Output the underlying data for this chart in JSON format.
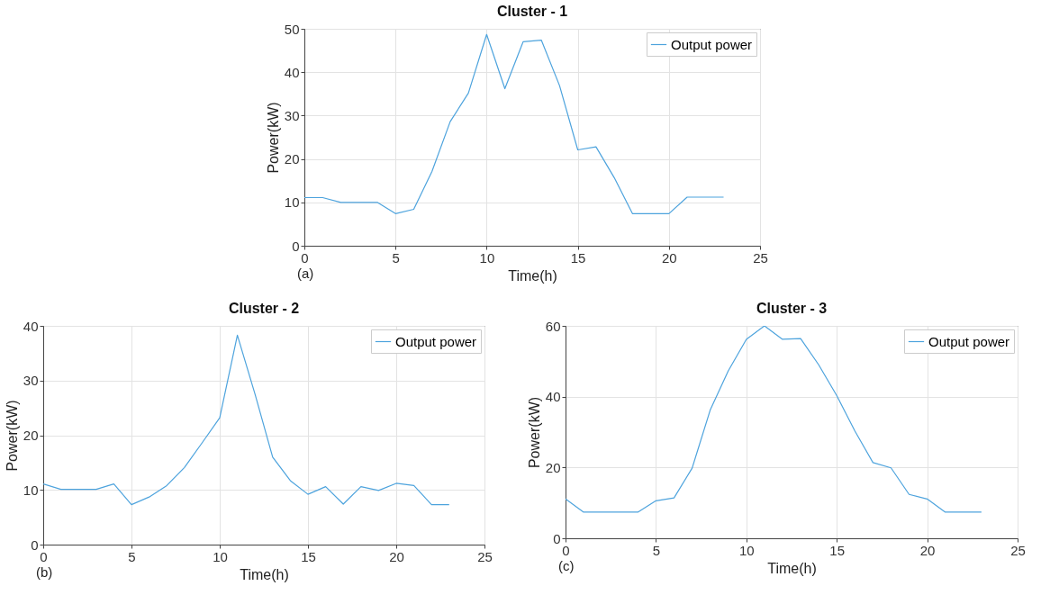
{
  "chart_data": [
    {
      "type": "line",
      "title": "Cluster - 1",
      "xlabel": "Time(h)",
      "ylabel": "Power(kW)",
      "x": [
        0,
        1,
        2,
        3,
        4,
        5,
        6,
        7,
        8,
        9,
        10,
        11,
        12,
        13,
        14,
        15,
        16,
        17,
        18,
        19,
        20,
        21,
        22,
        23
      ],
      "series": [
        {
          "name": "Output power",
          "color": "#4da3dd",
          "values": [
            11.1,
            11.1,
            10,
            10,
            10,
            7.4,
            8.4,
            17.1,
            28.6,
            35.2,
            48.7,
            36.2,
            47,
            47.4,
            36.9,
            22.1,
            22.8,
            15.7,
            7.4,
            7.4,
            7.4,
            11.2,
            11.2,
            11.2
          ]
        }
      ],
      "xlim": [
        0,
        25
      ],
      "xticks": [
        0,
        5,
        10,
        15,
        20,
        25
      ],
      "ylim": [
        0,
        50
      ],
      "yticks": [
        0,
        10,
        20,
        30,
        40,
        50
      ],
      "grid": true,
      "legend": "top right",
      "marker": "none",
      "line_style": "solid",
      "annotations": [
        "(a)"
      ]
    },
    {
      "type": "line",
      "title": "Cluster - 2",
      "xlabel": "Time(h)",
      "ylabel": "Power(kW)",
      "x": [
        0,
        1,
        2,
        3,
        4,
        5,
        6,
        7,
        8,
        9,
        10,
        11,
        12,
        13,
        14,
        15,
        16,
        17,
        18,
        19,
        20,
        21,
        22,
        23
      ],
      "series": [
        {
          "name": "Output power",
          "color": "#4da3dd",
          "values": [
            11.1,
            10.1,
            10.1,
            10.1,
            11.1,
            7.3,
            8.7,
            10.8,
            14.1,
            18.6,
            23.2,
            38.3,
            27.5,
            16,
            11.7,
            9.2,
            10.6,
            7.4,
            10.6,
            9.9,
            11.2,
            10.8,
            7.3,
            7.3
          ]
        }
      ],
      "xlim": [
        0,
        25
      ],
      "xticks": [
        0,
        5,
        10,
        15,
        20,
        25
      ],
      "ylim": [
        0,
        40
      ],
      "yticks": [
        0,
        10,
        20,
        30,
        40
      ],
      "grid": true,
      "legend": "top right",
      "marker": "none",
      "line_style": "solid",
      "annotations": [
        "(b)"
      ]
    },
    {
      "type": "line",
      "title": "Cluster - 3",
      "xlabel": "Time(h)",
      "ylabel": "Power(kW)",
      "x": [
        0,
        1,
        2,
        3,
        4,
        5,
        6,
        7,
        8,
        9,
        10,
        11,
        12,
        13,
        14,
        15,
        16,
        17,
        18,
        19,
        20,
        21,
        22,
        23
      ],
      "series": [
        {
          "name": "Output power",
          "color": "#4da3dd",
          "values": [
            11.1,
            7.4,
            7.4,
            7.4,
            7.4,
            10.6,
            11.4,
            19.8,
            36.2,
            47.3,
            56.2,
            60,
            56.2,
            56.4,
            49,
            40.3,
            30.3,
            21.4,
            19.9,
            12.4,
            11.1,
            7.4,
            7.4,
            7.4
          ]
        }
      ],
      "xlim": [
        0,
        25
      ],
      "xticks": [
        0,
        5,
        10,
        15,
        20,
        25
      ],
      "ylim": [
        0,
        60
      ],
      "yticks": [
        0,
        20,
        40,
        60
      ],
      "grid": true,
      "legend": "top right",
      "marker": "none",
      "line_style": "solid",
      "annotations": [
        "(c)"
      ]
    }
  ]
}
